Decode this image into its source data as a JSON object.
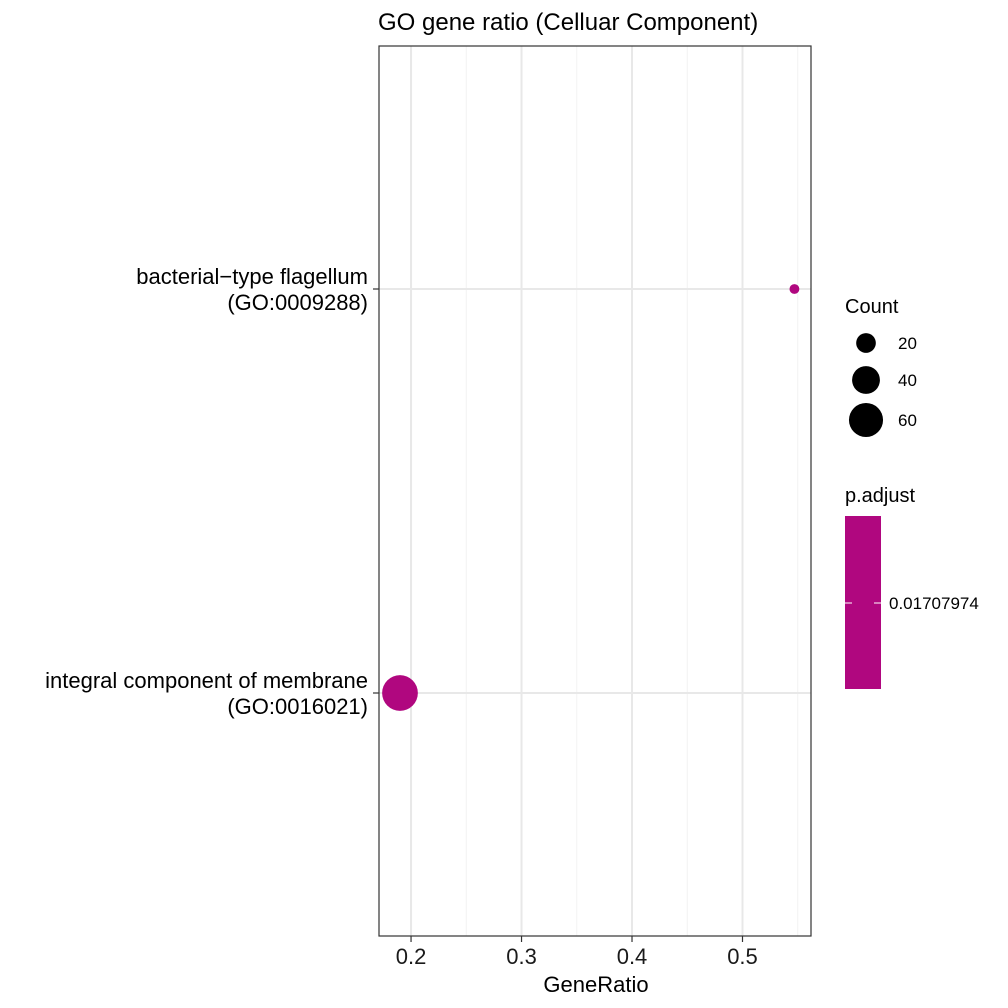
{
  "chart_data": {
    "type": "scatter",
    "title": "GO gene ratio (Celluar Component)",
    "xlabel": "GeneRatio",
    "ylabel": "",
    "xlim": [
      0.171,
      0.562
    ],
    "x_ticks": [
      0.2,
      0.3,
      0.4,
      0.5
    ],
    "x_tick_labels": [
      "0.2",
      "0.3",
      "0.4",
      "0.5"
    ],
    "x_minor_ticks": [
      0.25,
      0.35,
      0.45,
      0.55
    ],
    "grid": true,
    "categories": [
      {
        "line1": "bacterial−type flagellum",
        "line2": "(GO:0009288)"
      },
      {
        "line1": "integral component of membrane",
        "line2": "(GO:0016021)"
      }
    ],
    "points": [
      {
        "category_index": 0,
        "x": 0.547,
        "count": 5,
        "p_adjust": 0.01707974
      },
      {
        "category_index": 1,
        "x": 0.19,
        "count": 66,
        "p_adjust": 0.01707974
      }
    ],
    "point_color": "#b0077f",
    "legend_placement": "right",
    "size_legend": {
      "title": "Count",
      "entries": [
        {
          "value": 20,
          "label": "20"
        },
        {
          "value": 40,
          "label": "40"
        },
        {
          "value": 60,
          "label": "60"
        }
      ]
    },
    "color_legend": {
      "title": "p.adjust",
      "label": "0.01707974",
      "color": "#b0077f"
    }
  }
}
